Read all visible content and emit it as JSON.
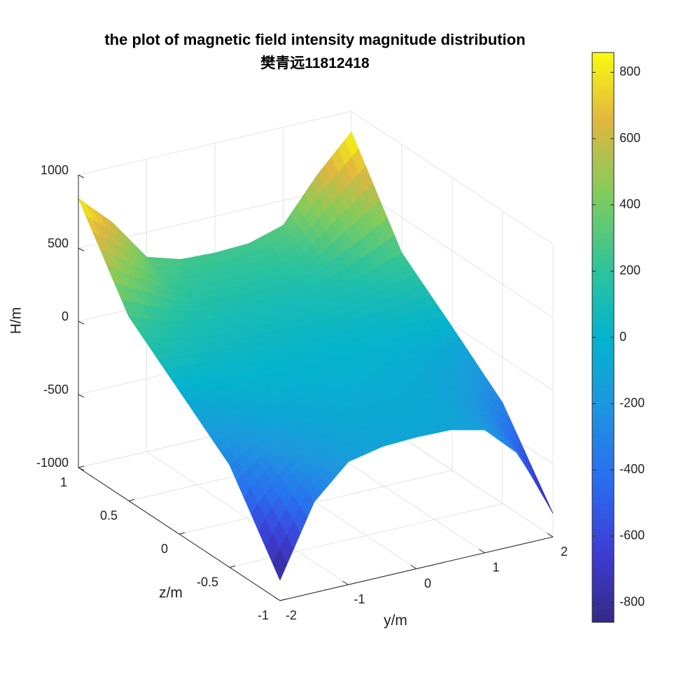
{
  "figure": {
    "title_line1": "the plot of magnetic field intensity magnitude distribution",
    "title_line2": "樊青远11812418"
  },
  "chart_data": {
    "type": "surface",
    "title": "the plot of magnetic field intensity magnitude distribution 樊青远11812418",
    "xlabel": "y/m",
    "ylabel": "z/m",
    "zlabel": "H/m",
    "xlim": [
      -2,
      2
    ],
    "ylim": [
      -1,
      1
    ],
    "zlim": [
      -1000,
      1000
    ],
    "xticks": [
      -2,
      -1,
      0,
      1,
      2
    ],
    "yticks": [
      -1,
      -0.5,
      0,
      0.5,
      1
    ],
    "zticks": [
      -1000,
      -500,
      0,
      500,
      1000
    ],
    "xtick_labels": [
      "-2",
      "-1",
      "0",
      "1",
      "2"
    ],
    "ytick_labels": [
      "-1",
      "-0.5",
      "0",
      "0.5",
      "1"
    ],
    "ztick_labels": [
      "-1000",
      "-500",
      "0",
      "500",
      "1000"
    ],
    "grid": true,
    "y_grid": [
      -2,
      -1.5,
      -1,
      -0.5,
      0,
      0.5,
      1,
      1.5,
      2
    ],
    "z_grid": [
      -1,
      -0.5,
      0,
      0.5,
      1
    ],
    "h_values": [
      [
        -860,
        -380,
        -160,
        -110,
        -100,
        -105,
        -160,
        -380,
        -840
      ],
      [
        -300,
        -160,
        -85,
        -55,
        -50,
        -55,
        -85,
        -160,
        -310
      ],
      [
        -20,
        0,
        5,
        5,
        5,
        5,
        5,
        0,
        -20
      ],
      [
        260,
        170,
        120,
        100,
        95,
        100,
        120,
        170,
        260
      ],
      [
        840,
        620,
        330,
        260,
        250,
        260,
        330,
        620,
        860
      ]
    ],
    "colormap": "parula",
    "colorbar": {
      "limits": [
        -860,
        860
      ],
      "ticks": [
        -800,
        -600,
        -400,
        -200,
        0,
        200,
        400,
        600,
        800
      ],
      "tick_labels": [
        "-800",
        "-600",
        "-400",
        "-200",
        "0",
        "200",
        "400",
        "600",
        "800"
      ]
    },
    "view": "3-D, viewed from the -y / +z corner"
  }
}
